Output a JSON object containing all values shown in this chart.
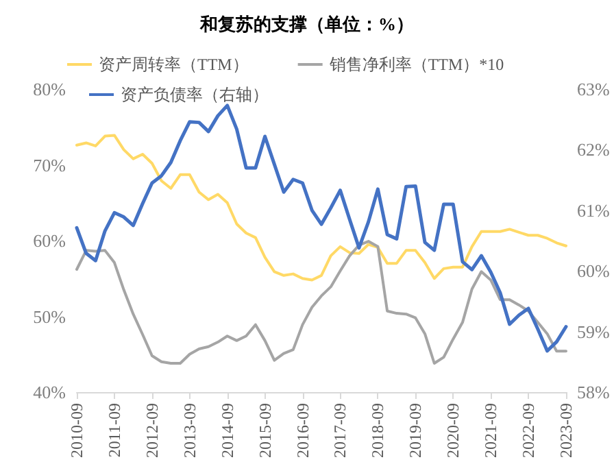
{
  "chart_data": {
    "type": "line",
    "title": "和复苏的支撑（单位：%）",
    "categories": [
      "2010-09",
      null,
      null,
      null,
      "2011-09",
      null,
      null,
      null,
      "2012-09",
      null,
      null,
      null,
      "2013-09",
      null,
      null,
      null,
      "2014-09",
      null,
      null,
      null,
      "2015-09",
      null,
      null,
      null,
      "2016-09",
      null,
      null,
      null,
      "2017-09",
      null,
      null,
      null,
      "2018-09",
      null,
      null,
      null,
      "2019-09",
      null,
      null,
      null,
      "2020-09",
      null,
      null,
      null,
      "2021-09",
      null,
      null,
      null,
      "2022-09",
      null,
      null,
      null,
      "2023-09"
    ],
    "series": [
      {
        "name": "资产周转率（TTM）",
        "color": "#ffd966",
        "values": [
          72.6,
          72.9,
          72.5,
          73.8,
          73.9,
          72.0,
          70.8,
          71.4,
          70.2,
          67.9,
          66.9,
          68.7,
          68.7,
          66.4,
          65.4,
          66.1,
          65.0,
          62.2,
          61.0,
          60.4,
          57.8,
          55.9,
          55.4,
          55.6,
          55.0,
          54.8,
          55.4,
          58.0,
          59.2,
          58.4,
          58.3,
          59.5,
          59.1,
          57.0,
          57.0,
          58.7,
          58.7,
          57.1,
          55.0,
          56.3,
          56.5,
          56.5,
          59.2,
          61.2,
          61.2,
          61.2,
          61.5,
          61.1,
          60.7,
          60.7,
          60.3,
          59.7,
          59.3
        ]
      },
      {
        "name": "销售净利率（TTM）*10",
        "color": "#a5a5a5",
        "values": [
          56.2,
          58.7,
          58.6,
          58.7,
          57.1,
          53.5,
          50.3,
          47.6,
          44.8,
          44.0,
          43.8,
          43.8,
          45.0,
          45.7,
          46.0,
          46.6,
          47.4,
          46.8,
          47.4,
          48.9,
          46.8,
          44.2,
          45.1,
          45.6,
          48.9,
          51.2,
          52.7,
          53.9,
          56.0,
          58.0,
          59.4,
          59.9,
          59.2,
          50.7,
          50.4,
          50.3,
          49.8,
          47.7,
          43.8,
          44.6,
          47.0,
          49.2,
          53.6,
          55.9,
          54.8,
          52.2,
          52.2,
          51.5,
          50.7,
          49.2,
          47.7,
          45.4,
          45.4
        ]
      },
      {
        "name": "资产负债率（右轴）",
        "color": "#4472c4",
        "axis": "y2",
        "values": [
          60.71,
          60.29,
          60.17,
          60.66,
          60.96,
          60.89,
          60.75,
          61.11,
          61.45,
          61.57,
          61.79,
          62.15,
          62.46,
          62.45,
          62.3,
          62.56,
          62.73,
          62.34,
          61.7,
          61.7,
          62.22,
          61.76,
          61.3,
          61.51,
          61.45,
          61.0,
          60.77,
          61.04,
          61.33,
          60.85,
          60.38,
          60.81,
          61.35,
          60.6,
          60.53,
          61.39,
          61.4,
          60.47,
          60.34,
          61.1,
          61.1,
          60.15,
          60.02,
          60.25,
          59.98,
          59.64,
          59.12,
          59.27,
          59.38,
          59.04,
          58.68,
          58.83,
          59.08
        ]
      }
    ],
    "ylim": [
      40,
      80
    ],
    "yticks": [
      {
        "value": 40,
        "label": "40%"
      },
      {
        "value": 50,
        "label": "50%"
      },
      {
        "value": 60,
        "label": "60%"
      },
      {
        "value": 70,
        "label": "70%"
      },
      {
        "value": 80,
        "label": "80%"
      }
    ],
    "y2lim": [
      58,
      63
    ],
    "y2ticks": [
      {
        "value": 58,
        "label": "58%"
      },
      {
        "value": 59,
        "label": "59%"
      },
      {
        "value": 60,
        "label": "60%"
      },
      {
        "value": 61,
        "label": "61%"
      },
      {
        "value": 62,
        "label": "62%"
      },
      {
        "value": 63,
        "label": "63%"
      }
    ],
    "legend": "top",
    "grid": false,
    "marker": "none",
    "line_style": "solid"
  }
}
